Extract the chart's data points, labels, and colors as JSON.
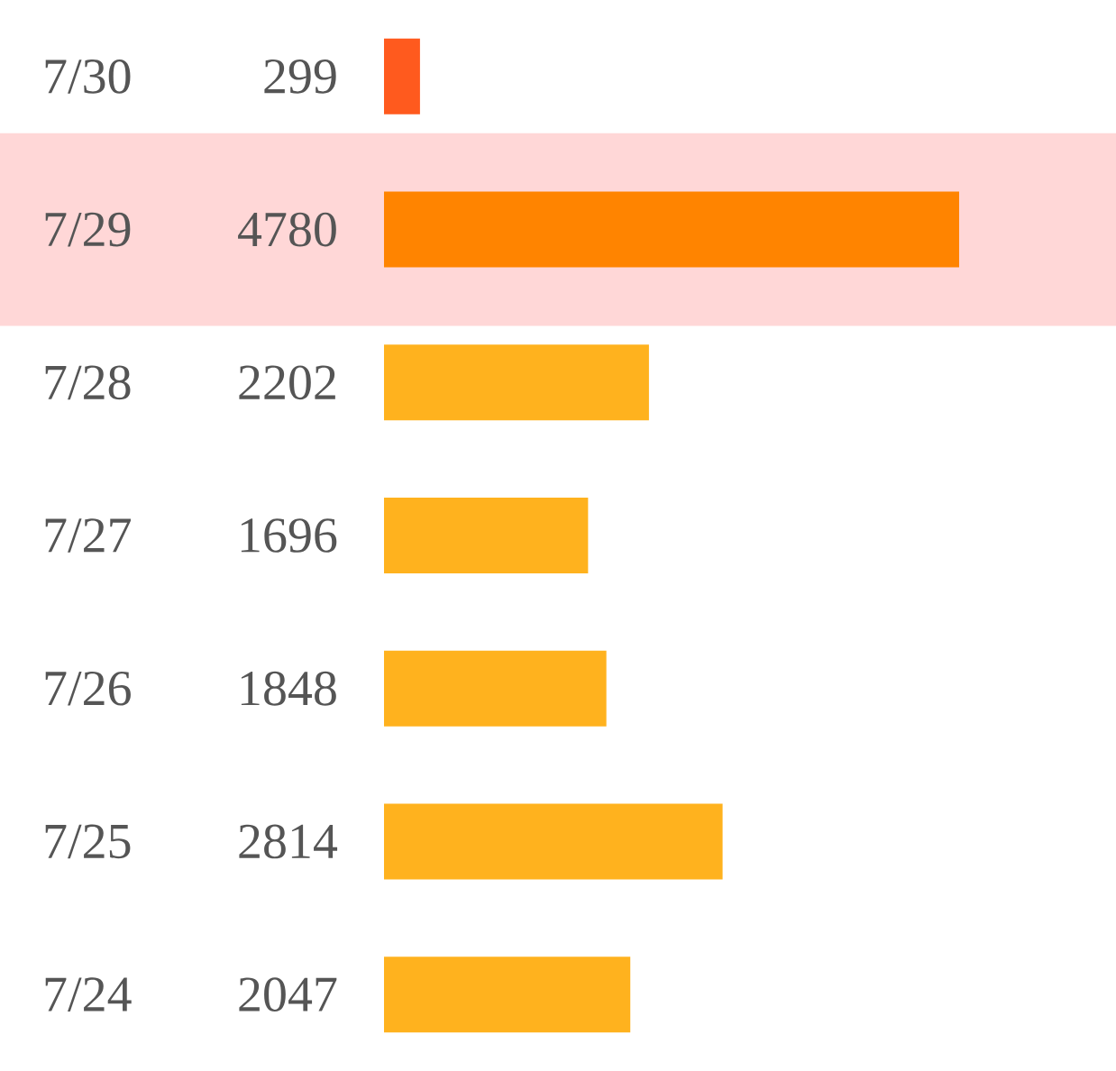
{
  "chart_data": {
    "type": "bar",
    "orientation": "horizontal",
    "categories": [
      "7/30",
      "7/29",
      "7/28",
      "7/27",
      "7/26",
      "7/25",
      "7/24"
    ],
    "values": [
      299,
      4780,
      2202,
      1696,
      1848,
      2814,
      2047
    ],
    "colors": [
      "#ff5a1e",
      "#ff8400",
      "#ffb21e",
      "#ffb21e",
      "#ffb21e",
      "#ffb21e",
      "#ffb21e"
    ],
    "data_labels": true,
    "bands": [
      {
        "axis": "y",
        "from": "7/29",
        "to": "7/29",
        "color": "#ffd7d7"
      }
    ]
  }
}
